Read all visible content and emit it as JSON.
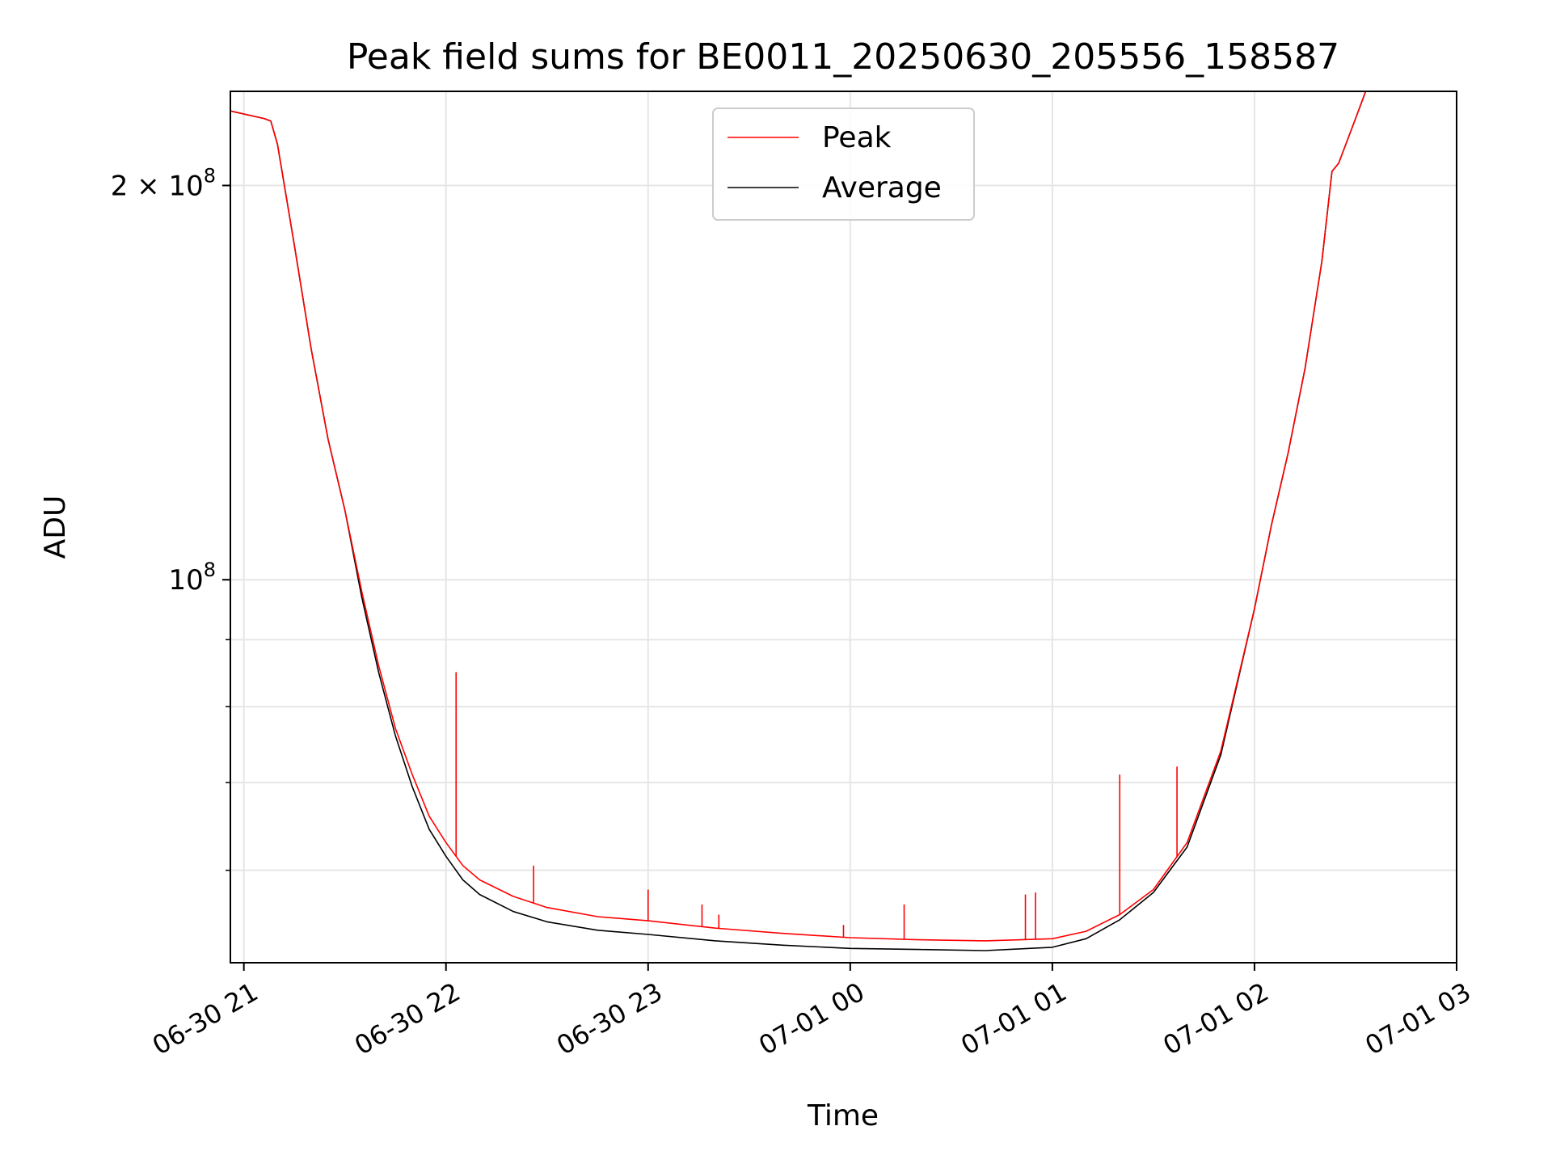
{
  "chart_data": {
    "type": "line",
    "title": "Peak field sums for BE0011_20250630_205556_158587",
    "xlabel": "Time",
    "ylabel": "ADU",
    "x_scale": "time",
    "y_scale": "log",
    "xlim": [
      "2025-06-30 20:56",
      "2025-07-01 03:00"
    ],
    "ylim": [
      51000000,
      236000000
    ],
    "x_ticks": [
      "2025-06-30 21:00",
      "2025-06-30 22:00",
      "2025-06-30 23:00",
      "2025-07-01 00:00",
      "2025-07-01 01:00",
      "2025-07-01 02:00",
      "2025-07-01 03:00"
    ],
    "x_tick_labels": [
      "06-30 21",
      "06-30 22",
      "06-30 23",
      "07-01 00",
      "07-01 01",
      "07-01 02",
      "07-01 03"
    ],
    "y_major_ticks": [
      100000000,
      200000000
    ],
    "y_major_tick_labels": [
      {
        "base": "10",
        "exp": "8"
      },
      {
        "base": "2 × 10",
        "exp": "8"
      }
    ],
    "y_minor_ticks": [
      60000000,
      70000000,
      80000000,
      90000000
    ],
    "grid": true,
    "legend_position": "top-center",
    "series": [
      {
        "name": "Peak",
        "color": "#ff0000",
        "x": [
          "2025-06-30 20:56",
          "2025-06-30 21:06",
          "2025-06-30 21:08",
          "2025-06-30 21:10",
          "2025-06-30 21:15",
          "2025-06-30 21:20",
          "2025-06-30 21:25",
          "2025-06-30 21:30",
          "2025-06-30 21:35",
          "2025-06-30 21:40",
          "2025-06-30 21:45",
          "2025-06-30 21:50",
          "2025-06-30 21:55",
          "2025-06-30 22:00",
          "2025-06-30 22:05",
          "2025-06-30 22:10",
          "2025-06-30 22:20",
          "2025-06-30 22:30",
          "2025-06-30 22:45",
          "2025-06-30 23:00",
          "2025-06-30 23:20",
          "2025-06-30 23:40",
          "2025-07-01 00:00",
          "2025-07-01 00:20",
          "2025-07-01 00:40",
          "2025-07-01 01:00",
          "2025-07-01 01:10",
          "2025-07-01 01:20",
          "2025-07-01 01:30",
          "2025-07-01 01:40",
          "2025-07-01 01:50",
          "2025-07-01 02:00",
          "2025-07-01 02:05",
          "2025-07-01 02:10",
          "2025-07-01 02:15",
          "2025-07-01 02:20",
          "2025-07-01 02:23",
          "2025-07-01 02:25",
          "2025-07-01 02:30",
          "2025-07-01 02:33"
        ],
        "y": [
          228000000,
          225000000,
          224000000,
          215000000,
          180000000,
          150000000,
          128000000,
          113000000,
          98000000,
          86000000,
          77000000,
          71000000,
          66000000,
          63000000,
          60500000,
          59000000,
          57300000,
          56200000,
          55300000,
          54900000,
          54200000,
          53700000,
          53300000,
          53100000,
          53000000,
          53200000,
          53900000,
          55500000,
          58000000,
          63000000,
          74000000,
          95000000,
          110000000,
          125000000,
          145000000,
          175000000,
          205000000,
          208000000,
          225000000,
          236000000
        ]
      },
      {
        "name": "Average",
        "color": "#000000",
        "x": [
          "2025-06-30 20:56",
          "2025-06-30 21:06",
          "2025-06-30 21:08",
          "2025-06-30 21:10",
          "2025-06-30 21:15",
          "2025-06-30 21:20",
          "2025-06-30 21:25",
          "2025-06-30 21:30",
          "2025-06-30 21:35",
          "2025-06-30 21:40",
          "2025-06-30 21:45",
          "2025-06-30 21:50",
          "2025-06-30 21:55",
          "2025-06-30 22:00",
          "2025-06-30 22:05",
          "2025-06-30 22:10",
          "2025-06-30 22:20",
          "2025-06-30 22:30",
          "2025-06-30 22:45",
          "2025-06-30 23:00",
          "2025-06-30 23:20",
          "2025-06-30 23:40",
          "2025-07-01 00:00",
          "2025-07-01 00:20",
          "2025-07-01 00:40",
          "2025-07-01 01:00",
          "2025-07-01 01:10",
          "2025-07-01 01:20",
          "2025-07-01 01:30",
          "2025-07-01 01:40",
          "2025-07-01 01:50",
          "2025-07-01 02:00",
          "2025-07-01 02:05",
          "2025-07-01 02:10",
          "2025-07-01 02:15",
          "2025-07-01 02:20",
          "2025-07-01 02:23",
          "2025-07-01 02:25",
          "2025-07-01 02:30",
          "2025-07-01 02:33"
        ],
        "y": [
          228000000,
          225000000,
          224000000,
          215000000,
          180000000,
          150000000,
          128000000,
          113000000,
          97000000,
          85000000,
          76000000,
          69500000,
          64500000,
          61500000,
          59000000,
          57500000,
          55800000,
          54800000,
          54000000,
          53600000,
          53000000,
          52600000,
          52300000,
          52200000,
          52100000,
          52400000,
          53200000,
          55000000,
          57700000,
          62500000,
          73500000,
          95000000,
          110000000,
          125000000,
          145000000,
          175000000,
          205000000,
          208000000,
          225000000,
          236000000
        ]
      }
    ],
    "peak_spikes": [
      {
        "x": "2025-06-30 22:03",
        "y": 85000000
      },
      {
        "x": "2025-06-30 22:26",
        "y": 60500000
      },
      {
        "x": "2025-06-30 23:00",
        "y": 58000000
      },
      {
        "x": "2025-06-30 23:16",
        "y": 56500000
      },
      {
        "x": "2025-06-30 23:21",
        "y": 55500000
      },
      {
        "x": "2025-06-30 23:58",
        "y": 54500000
      },
      {
        "x": "2025-07-01 00:16",
        "y": 56500000
      },
      {
        "x": "2025-07-01 00:52",
        "y": 57500000
      },
      {
        "x": "2025-07-01 00:55",
        "y": 57700000
      },
      {
        "x": "2025-07-01 01:20",
        "y": 71000000
      },
      {
        "x": "2025-07-01 01:37",
        "y": 72000000
      }
    ]
  }
}
